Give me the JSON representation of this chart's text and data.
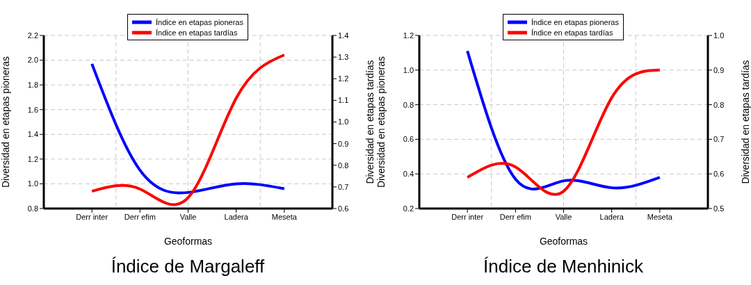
{
  "chart_data": [
    {
      "type": "line",
      "title": "Índice de Margaleff",
      "xlabel": "Geoformas",
      "ylabel": "Diversidad en etapas pioneras",
      "y2label": "Diversidad en etapas tardías",
      "categories": [
        "Derr inter",
        "Derr efim",
        "Valle",
        "Ladera",
        "Meseta"
      ],
      "series": [
        {
          "name": "Índice en etapas pioneras",
          "color": "#0000ff",
          "values": [
            1.97,
            1.11,
            0.93,
            1.0,
            0.96
          ]
        },
        {
          "name": "Índice en etapas tardías",
          "color": "#ff0000",
          "axis": "y2",
          "values": [
            0.68,
            0.69,
            0.65,
            1.11,
            1.31
          ]
        }
      ],
      "ylim": [
        0.8,
        2.2
      ],
      "yticks": [
        {
          "value": 0.8,
          "label": "0.8"
        },
        {
          "value": 1,
          "label": "1.0"
        },
        1.2,
        1.4,
        1.6,
        1.8,
        {
          "value": 2,
          "label": "2.0"
        },
        2.2
      ],
      "y2lim": [
        0.6,
        1.4
      ],
      "y2ticks": [
        0.6,
        0.7,
        0.8,
        0.9,
        {
          "value": 1,
          "label": "1.0"
        },
        1.1,
        1.2,
        1.3,
        1.4
      ],
      "grid": true,
      "legend": "top",
      "marker": "none",
      "line_style": "solid"
    },
    {
      "type": "line",
      "title": "Índice de Menhinick",
      "xlabel": "Geoformas",
      "ylabel": "Diversidad en etapas pioneras",
      "y2label": "Diversidad en etapas tardías",
      "categories": [
        "Derr inter",
        "Derr efim",
        "Valle",
        "Ladera",
        "Meseta"
      ],
      "series": [
        {
          "name": "Índice en etapas pioneras",
          "color": "#0000ff",
          "values": [
            1.11,
            0.37,
            0.36,
            0.32,
            0.38
          ]
        },
        {
          "name": "Índice en etapas tardías",
          "color": "#ff0000",
          "axis": "y2",
          "values": [
            0.59,
            0.62,
            0.55,
            0.82,
            0.9
          ]
        }
      ],
      "ylim": [
        0.2,
        1.2
      ],
      "yticks": [
        0.2,
        0.4,
        0.6,
        0.8,
        {
          "value": 1,
          "label": "1.0"
        },
        1.2
      ],
      "y2lim": [
        0.5,
        1.0
      ],
      "y2ticks": [
        0.5,
        0.6,
        0.7,
        0.8,
        0.9,
        {
          "value": 1,
          "label": "1.0"
        }
      ],
      "grid": true,
      "legend": "top",
      "marker": "none",
      "line_style": "solid"
    }
  ]
}
